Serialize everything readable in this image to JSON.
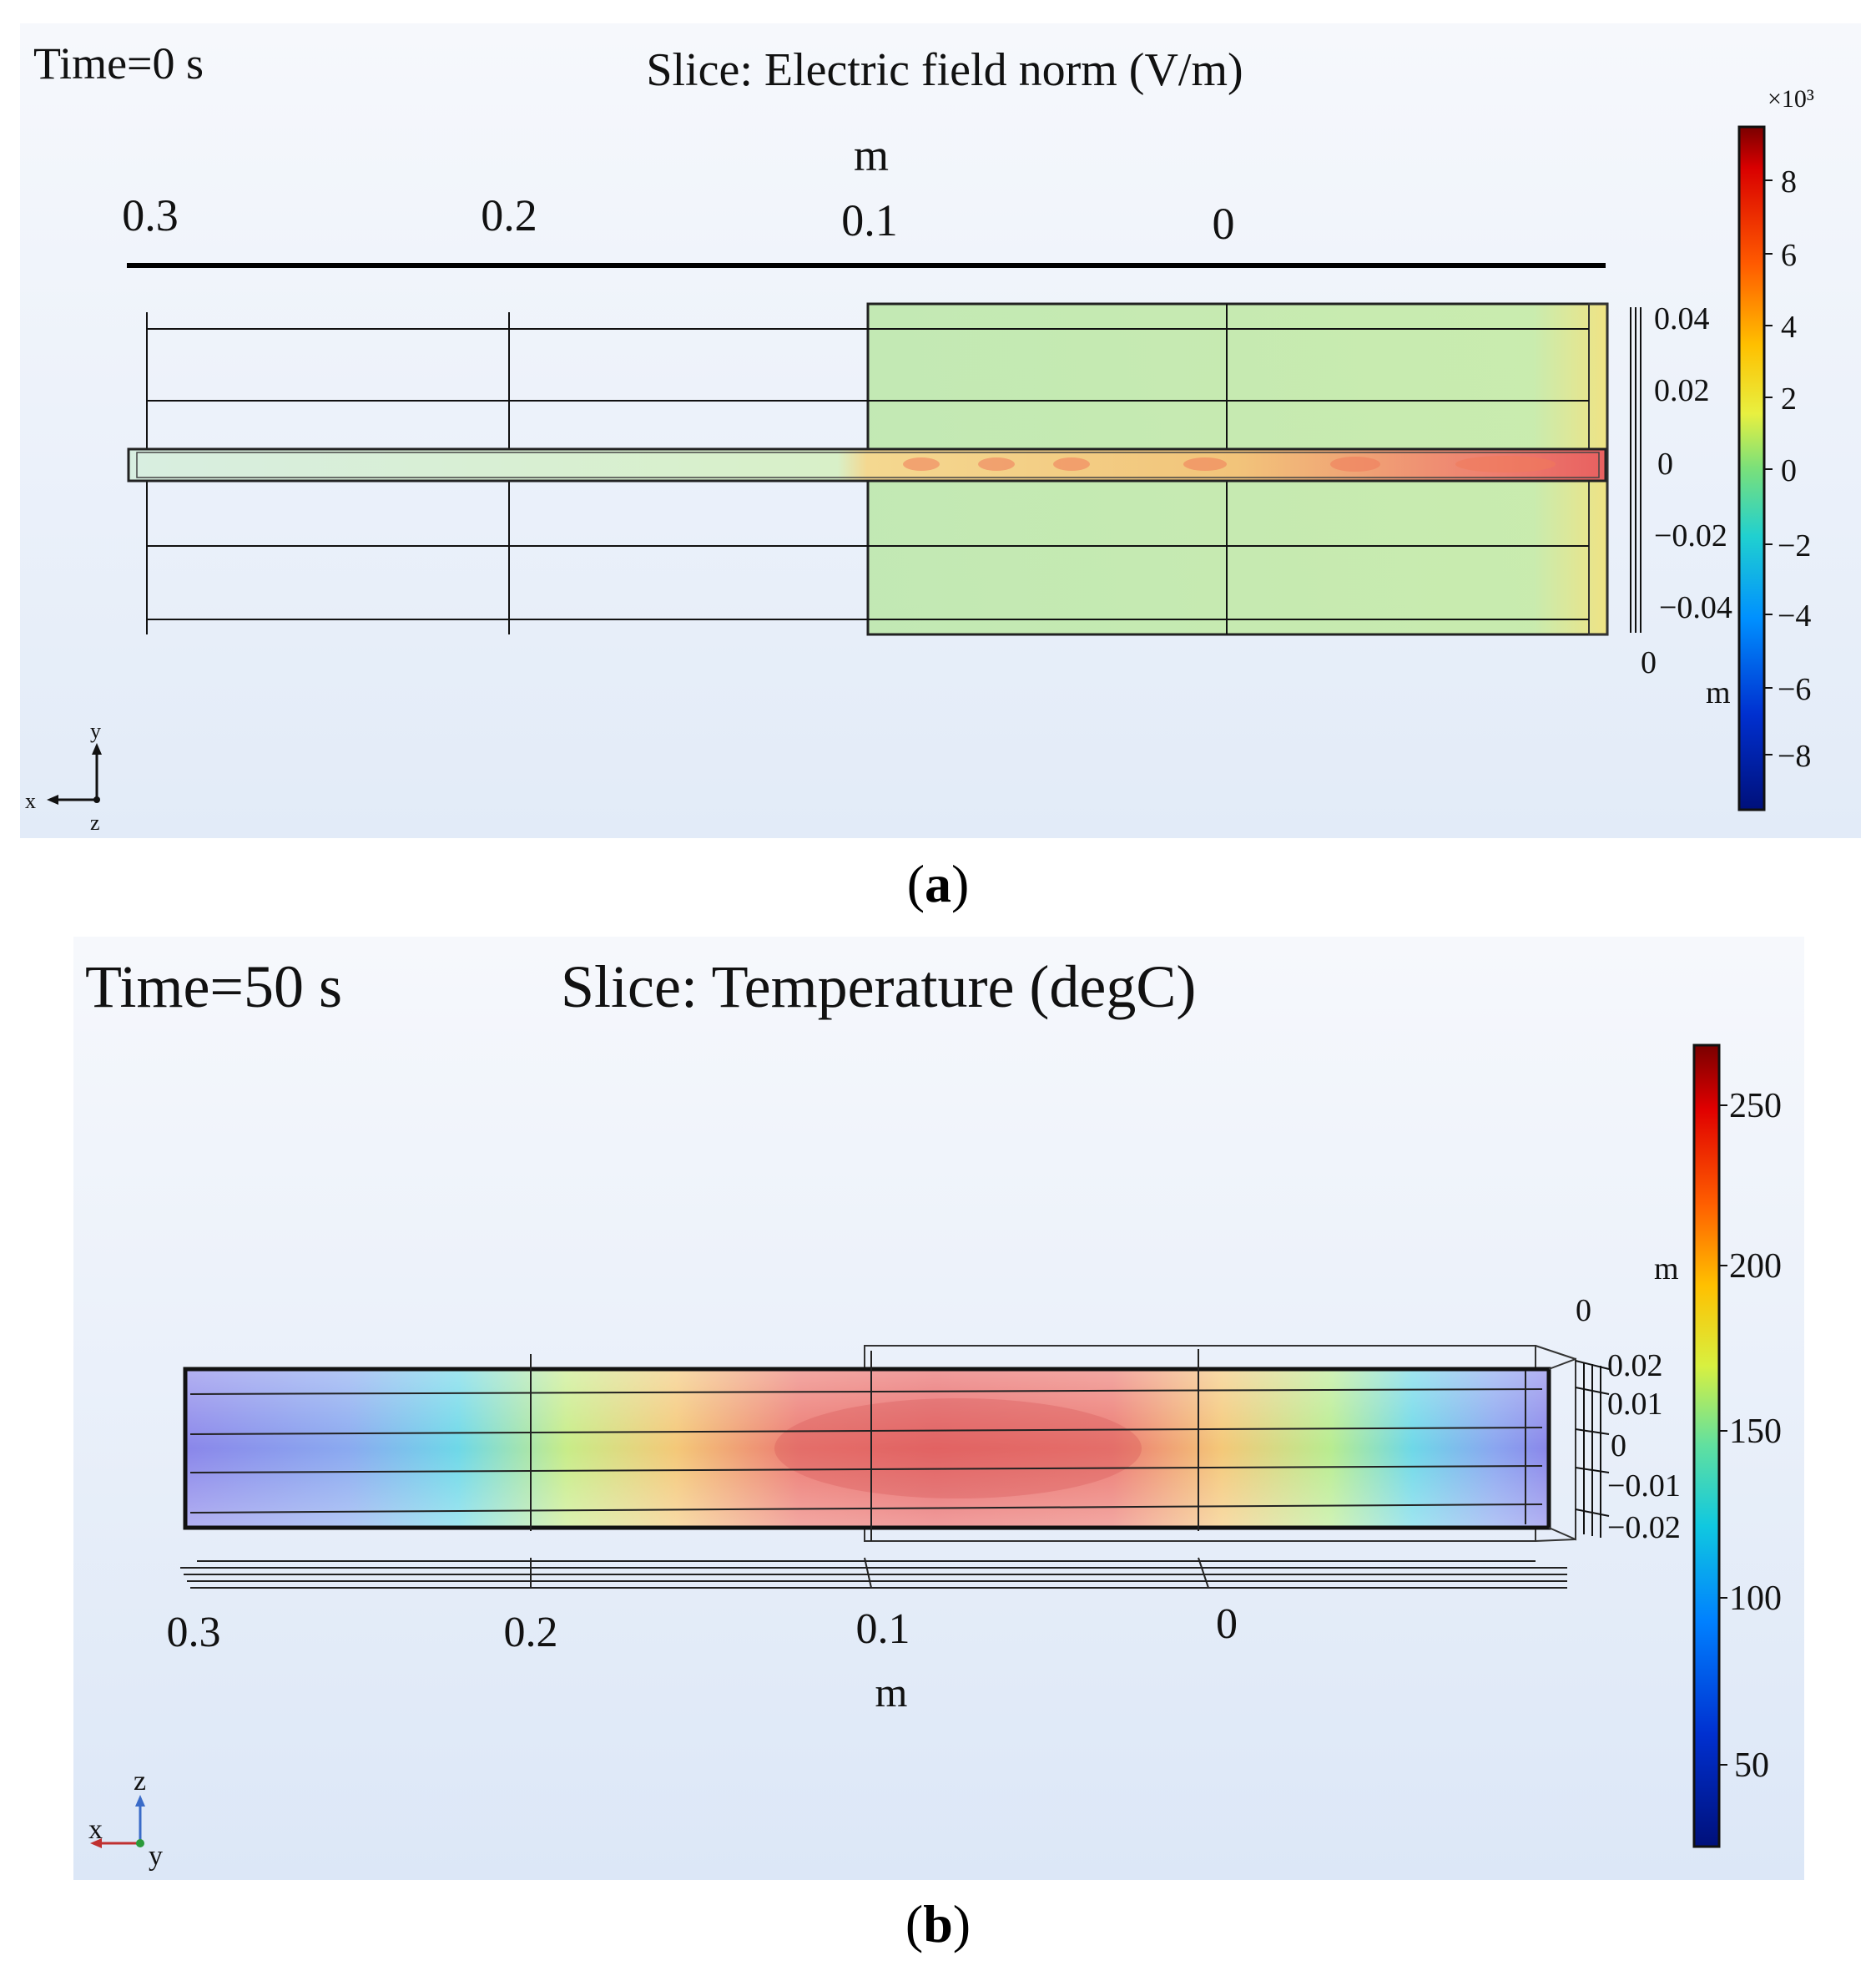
{
  "panel_a": {
    "time_label": "Time=0 s",
    "title": "Slice: Electric field norm (V/m)",
    "x_unit": "m",
    "x_ticks": [
      "0.3",
      "0.2",
      "0.1",
      "0"
    ],
    "y_ticks": [
      "0.04",
      "0.02",
      "0",
      "−0.02",
      "−0.04"
    ],
    "z_tick": "0",
    "y_unit": "m",
    "colorbar_multiplier": "×10³",
    "colorbar_ticks": [
      "8",
      "6",
      "4",
      "2",
      "0",
      "−2",
      "−4",
      "−6",
      "−8"
    ],
    "triad": {
      "up": "y",
      "left": "x",
      "down": "z"
    },
    "caption": "a"
  },
  "panel_b": {
    "time_label": "Time=50 s",
    "title": "Slice: Temperature (degC)",
    "x_unit": "m",
    "x_ticks": [
      "0.3",
      "0.2",
      "0.1",
      "0"
    ],
    "side_unit": "m",
    "side_zero": "0",
    "z_ticks": [
      "0.02",
      "0.01",
      "0",
      "−0.01",
      "−0.02"
    ],
    "colorbar_ticks": [
      "250",
      "200",
      "150",
      "100",
      "50"
    ],
    "triad": {
      "up": "z",
      "left": "x",
      "right": "y"
    },
    "caption": "b"
  },
  "colors": {
    "panel_bg_top": "#f4f7fc",
    "panel_bg_bottom": "#dfe9f8",
    "field_green": "#b9e6a9",
    "hot_red": "#e85a5a"
  }
}
